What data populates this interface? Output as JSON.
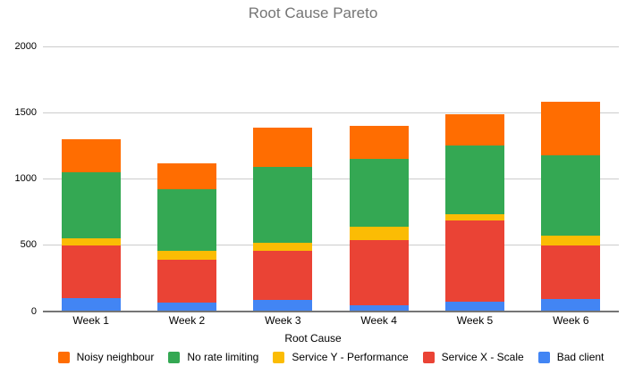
{
  "page": {
    "background": "#ffffff",
    "text_color": "#000000"
  },
  "chart_data": {
    "type": "bar",
    "variant": "stacked-column",
    "title": "Root Cause Pareto",
    "title_color": "#757575",
    "xlabel": "Root Cause",
    "ylabel": "",
    "categories": [
      "Week 1",
      "Week 2",
      "Week 3",
      "Week 4",
      "Week 5",
      "Week 6"
    ],
    "series": [
      {
        "name": "Bad client",
        "color": "#4285F4",
        "values": [
          100,
          70,
          90,
          50,
          75,
          95
        ]
      },
      {
        "name": "Service X - Scale",
        "color": "#EA4335",
        "values": [
          400,
          320,
          370,
          490,
          615,
          405
        ]
      },
      {
        "name": "Service Y - Performance",
        "color": "#FBBC04",
        "values": [
          50,
          70,
          60,
          100,
          45,
          70
        ]
      },
      {
        "name": "No rate limiting",
        "color": "#34A853",
        "values": [
          500,
          460,
          570,
          510,
          515,
          610
        ]
      },
      {
        "name": "Noisy neighbour",
        "color": "#FF6D01",
        "values": [
          250,
          200,
          300,
          250,
          240,
          400
        ]
      }
    ],
    "stack_order": "bottom-to-top",
    "totals": [
      1300,
      1120,
      1390,
      1400,
      1490,
      1580
    ],
    "legend": [
      "Noisy neighbour",
      "No rate limiting",
      "Service Y - Performance",
      "Service X - Scale",
      "Bad client"
    ],
    "legend_position": "bottom",
    "ylim": [
      0,
      2000
    ],
    "yticks": [
      0,
      500,
      1000,
      1500,
      2000
    ],
    "grid": true,
    "gridline_color": "#cccccc",
    "axis_line_color": "#757575"
  }
}
